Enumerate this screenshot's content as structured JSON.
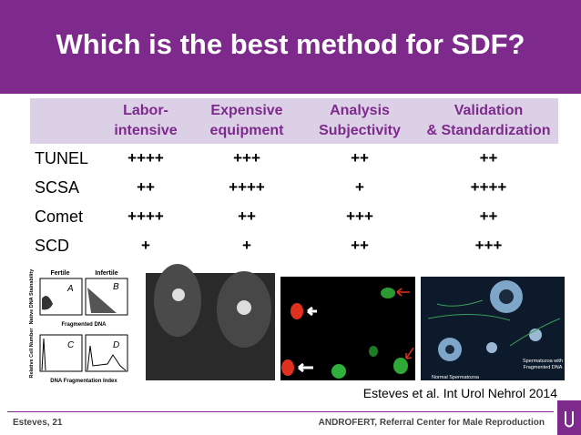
{
  "header": {
    "title": "Which is the best method for SDF?"
  },
  "table": {
    "columns": [
      [
        "Labor-",
        "intensive"
      ],
      [
        "Expensive",
        "equipment"
      ],
      [
        "Analysis",
        "Subjectivity"
      ],
      [
        "Validation",
        "& Standardization"
      ]
    ],
    "rows": [
      [
        "TUNEL",
        "++++",
        "+++",
        "++",
        "++"
      ],
      [
        "SCSA",
        "++",
        "++++",
        "+",
        "++++"
      ],
      [
        "Comet",
        "++++",
        "++",
        "+++",
        "++"
      ],
      [
        "SCD",
        "+",
        "+",
        "++",
        "+++"
      ]
    ]
  },
  "figure": {
    "fertile": "Fertile",
    "infertile": "Infertile",
    "panels": [
      "A",
      "B",
      "C",
      "D"
    ],
    "y_top": "Native DNA Stainability",
    "x_top": "Fragmented DNA",
    "y_bottom": "Relative Cell Number",
    "x_bottom": "DNA Fragmentation Index",
    "normal": "Normal Spermatozoa",
    "fragmented": [
      "Spermatozoa with",
      "Fragmented DNA"
    ]
  },
  "citation": "Esteves et al. Int Urol Nehrol 2014",
  "footer": {
    "left": "Esteves, 21",
    "right": "ANDROFERT, Referral Center for Male Reproduction"
  }
}
